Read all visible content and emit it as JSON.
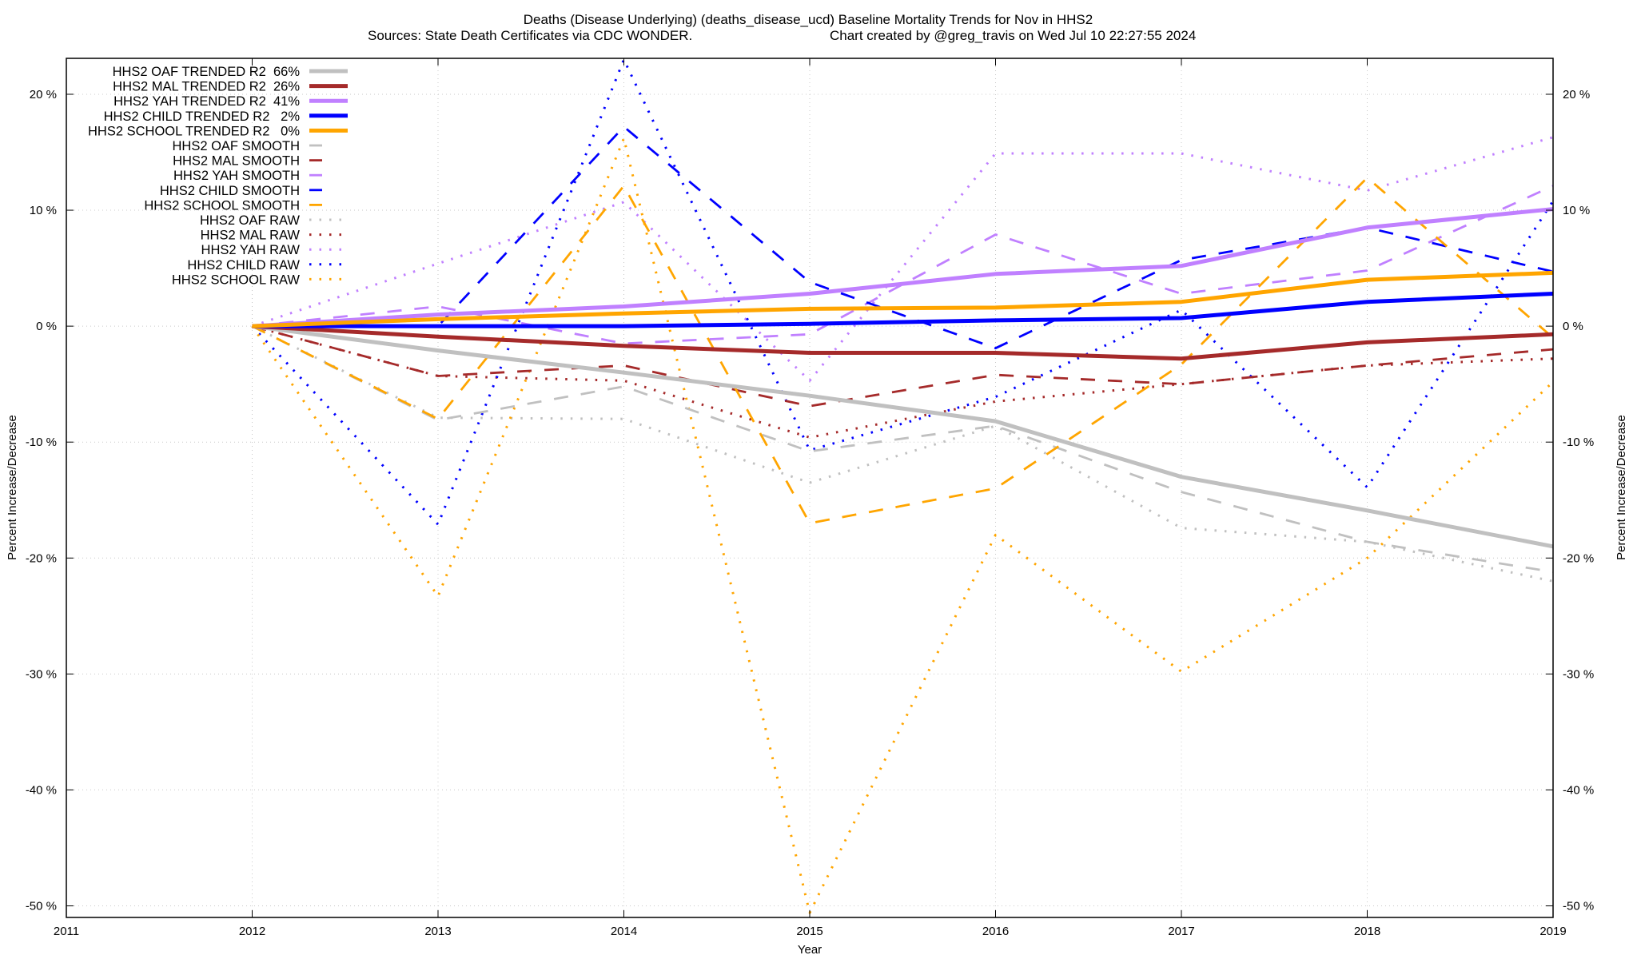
{
  "chart_data": {
    "type": "line",
    "title": "Deaths (Disease Underlying) (deaths_disease_ucd)  Baseline Mortality Trends for Nov in HHS2",
    "subtitle_left": "Sources: State Death Certificates via CDC WONDER.",
    "subtitle_right": "Chart created by @greg_travis on Wed Jul 10 22:27:55 2024",
    "xlabel": "Year",
    "ylabel": "Percent Increase/Decrease",
    "y2label": "Percent Increase/Decrease",
    "xlim": [
      2011,
      2019
    ],
    "ylim": [
      -51,
      23.1
    ],
    "x_ticks": [
      "2011",
      "2012",
      "2013",
      "2014",
      "2015",
      "2016",
      "2017",
      "2018",
      "2019"
    ],
    "y_ticks": [
      {
        "value": 20,
        "label": "20 %"
      },
      {
        "value": 10,
        "label": "10 %"
      },
      {
        "value": 0,
        "label": "0 %"
      },
      {
        "value": -10,
        "label": "-10 %"
      },
      {
        "value": -20,
        "label": "-20 %"
      },
      {
        "value": -30,
        "label": "-30 %"
      },
      {
        "value": -40,
        "label": "-40 %"
      },
      {
        "value": -50,
        "label": "-50 %"
      }
    ],
    "grid": true,
    "legend_position": "top-left",
    "x": [
      2012,
      2013,
      2014,
      2015,
      2016,
      2017,
      2018,
      2019
    ],
    "series": [
      {
        "name": "HHS2 OAF TRENDED R2  66%",
        "style": "solid",
        "color": "#c0c0c0",
        "values": [
          0,
          -2.1,
          -4.0,
          -6.0,
          -8.2,
          -13.0,
          -15.9,
          -19.0
        ]
      },
      {
        "name": "HHS2 MAL TRENDED R2  26%",
        "style": "solid",
        "color": "#a52a2a",
        "values": [
          0,
          -0.9,
          -1.7,
          -2.3,
          -2.3,
          -2.8,
          -1.4,
          -0.7
        ]
      },
      {
        "name": "HHS2 YAH TRENDED R2  41%",
        "style": "solid",
        "color": "#c080ff",
        "values": [
          0,
          1.0,
          1.7,
          2.8,
          4.5,
          5.2,
          8.5,
          10.1
        ]
      },
      {
        "name": "HHS2 CHILD TRENDED R2   2%",
        "style": "solid",
        "color": "#0000ff",
        "values": [
          0,
          0.0,
          0.0,
          0.2,
          0.5,
          0.7,
          2.1,
          2.8
        ]
      },
      {
        "name": "HHS2 SCHOOL TRENDED R2   0%",
        "style": "solid",
        "color": "#ffa500",
        "values": [
          0,
          0.6,
          1.1,
          1.5,
          1.6,
          2.1,
          4.0,
          4.6
        ]
      },
      {
        "name": "HHS2 OAF SMOOTH",
        "style": "dashed",
        "color": "#c0c0c0",
        "values": [
          0,
          -8.1,
          -5.2,
          -10.8,
          -8.6,
          -14.3,
          -18.6,
          -21.2
        ]
      },
      {
        "name": "HHS2 MAL SMOOTH",
        "style": "dashed",
        "color": "#a52a2a",
        "values": [
          0,
          -4.3,
          -3.4,
          -6.9,
          -4.2,
          -5.0,
          -3.4,
          -2.0
        ]
      },
      {
        "name": "HHS2 YAH SMOOTH",
        "style": "dashed",
        "color": "#c080ff",
        "values": [
          0,
          1.7,
          -1.5,
          -0.7,
          7.9,
          2.8,
          4.8,
          12.1
        ]
      },
      {
        "name": "HHS2 CHILD SMOOTH",
        "style": "dashed",
        "color": "#0000ff",
        "values": [
          0,
          0.0,
          17.2,
          3.8,
          -1.9,
          5.7,
          8.5,
          4.7
        ]
      },
      {
        "name": "HHS2 SCHOOL SMOOTH",
        "style": "dashed",
        "color": "#ffa500",
        "values": [
          0,
          -8.0,
          12.1,
          -17.0,
          -14.0,
          -3.3,
          12.8,
          -1.0
        ]
      },
      {
        "name": "HHS2 OAF RAW",
        "style": "dotted",
        "color": "#c0c0c0",
        "values": [
          0,
          -7.9,
          -8.0,
          -13.5,
          -8.6,
          -17.4,
          -18.6,
          -22.0
        ]
      },
      {
        "name": "HHS2 MAL RAW",
        "style": "dotted",
        "color": "#a52a2a",
        "values": [
          0,
          -4.3,
          -4.7,
          -9.6,
          -6.5,
          -5.0,
          -3.4,
          -2.8
        ]
      },
      {
        "name": "HHS2 YAH RAW",
        "style": "dotted",
        "color": "#c080ff",
        "values": [
          0,
          5.4,
          10.7,
          -4.7,
          14.9,
          14.9,
          11.7,
          16.3
        ]
      },
      {
        "name": "HHS2 CHILD RAW",
        "style": "dotted",
        "color": "#0000ff",
        "values": [
          0,
          -17.1,
          23.0,
          -10.7,
          -6.1,
          1.4,
          -13.9,
          10.8
        ]
      },
      {
        "name": "HHS2 SCHOOL RAW",
        "style": "dotted",
        "color": "#ffa500",
        "values": [
          0,
          -23.3,
          16.2,
          -50.6,
          -18.0,
          -29.8,
          -20.0,
          -4.8
        ]
      }
    ]
  }
}
